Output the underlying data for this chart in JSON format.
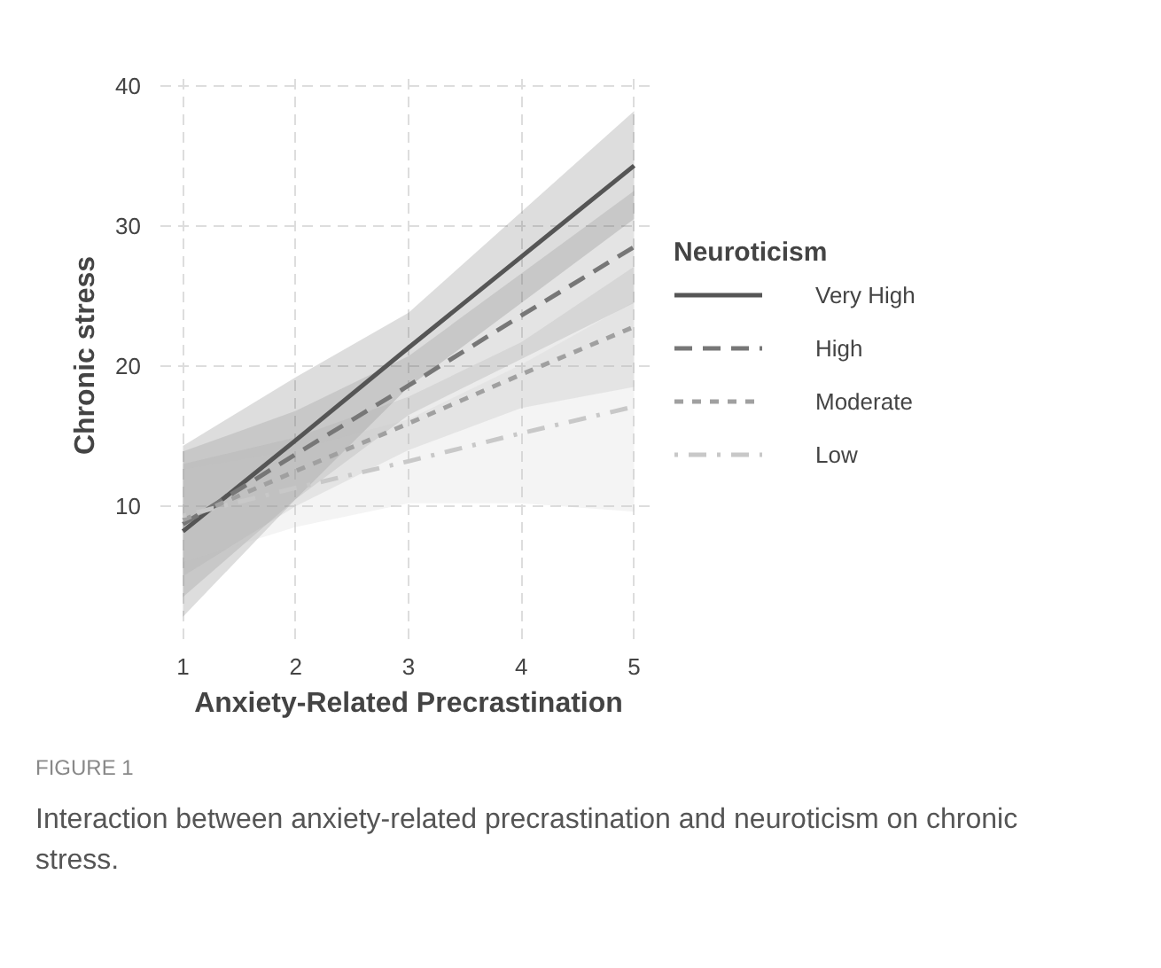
{
  "chart_data": {
    "type": "line",
    "xlabel": "Anxiety-Related Precrastination",
    "ylabel": "Chronic stress",
    "legend_title": "Neuroticism",
    "xlim": [
      0.8,
      5.2
    ],
    "ylim": [
      0.5,
      41
    ],
    "xticks": [
      1,
      2,
      3,
      4,
      5
    ],
    "yticks": [
      10,
      20,
      30,
      40
    ],
    "grid": true,
    "legend": "right",
    "series": [
      {
        "name": "Very High",
        "color": "#555555",
        "line_style": "solid",
        "x": [
          1,
          2,
          3,
          4,
          5
        ],
        "values": [
          8.2,
          14.7,
          21.3,
          27.8,
          34.3
        ],
        "lower": [
          2.1,
          10.5,
          18.5,
          24.5,
          30.5
        ],
        "upper": [
          14.3,
          19.2,
          23.8,
          31,
          38.2
        ]
      },
      {
        "name": "High",
        "color": "#777777",
        "line_style": "dashed",
        "x": [
          1,
          2,
          3,
          4,
          5
        ],
        "values": [
          8.7,
          13.7,
          18.6,
          23.6,
          28.5
        ],
        "lower": [
          3.5,
          10.5,
          16.5,
          20.5,
          24.5
        ],
        "upper": [
          13.9,
          16.8,
          20.7,
          26.6,
          32.5
        ]
      },
      {
        "name": "Moderate",
        "color": "#a0a0a0",
        "line_style": "dotted",
        "x": [
          1,
          2,
          3,
          4,
          5
        ],
        "values": [
          9,
          12.5,
          15.9,
          19.4,
          22.8
        ],
        "lower": [
          5,
          10,
          14,
          17,
          18.5
        ],
        "upper": [
          13,
          14.9,
          17.8,
          21.7,
          27.1
        ]
      },
      {
        "name": "Low",
        "color": "#c8c8c8",
        "line_style": "dashdot",
        "x": [
          1,
          2,
          3,
          4,
          5
        ],
        "values": [
          9.3,
          11.3,
          13.2,
          15.2,
          17.1
        ],
        "lower": [
          6,
          8.5,
          10.2,
          10.2,
          9.6
        ],
        "upper": [
          12.6,
          14,
          16.2,
          20.1,
          24.6
        ]
      }
    ],
    "annotations": [
      "FIGURE 1",
      "Interaction between anxiety-related precrastination and neuroticism on chronic stress."
    ]
  }
}
